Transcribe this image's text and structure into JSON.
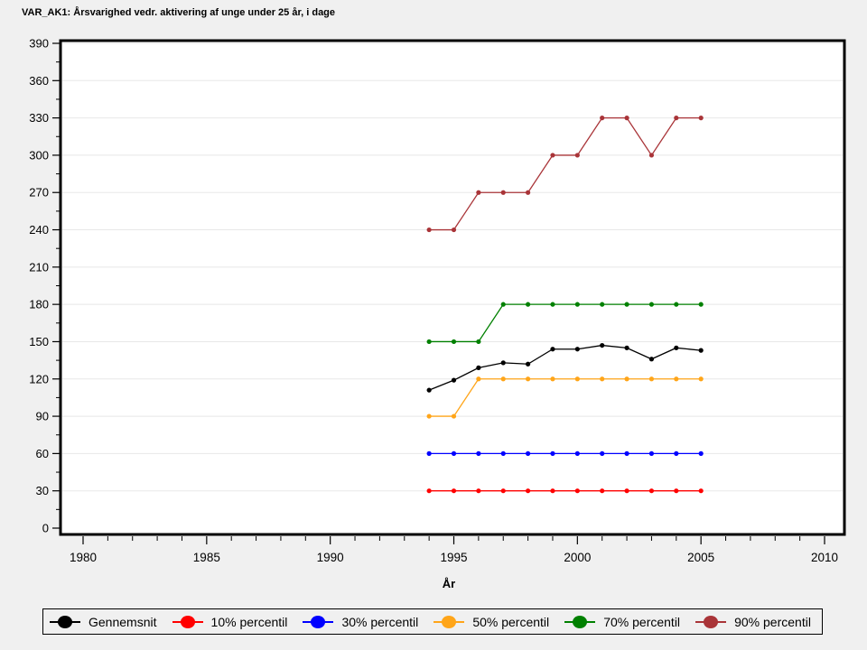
{
  "page": {
    "background": "#F0F0F0",
    "plot_background": "#FFFFFF",
    "frame_color": "#000000"
  },
  "chart_data": {
    "type": "line",
    "title": "VAR_AK1: Årsvarighed vedr. aktivering af unge under 25 år, i dage",
    "xlabel": "År",
    "ylabel": "",
    "ylim": [
      0,
      390
    ],
    "y_tick_step": 30,
    "y_minor_tick_step": 15,
    "x_axis_range": [
      1980,
      2010
    ],
    "x_ticks_major": [
      1980,
      1985,
      1990,
      1995,
      2000,
      2005,
      2010
    ],
    "x_minor_tick_step": 1,
    "grid": "horizontal",
    "grid_color": "#E8E8E8",
    "legend_position": "bottom",
    "x": [
      1994,
      1995,
      1996,
      1997,
      1998,
      1999,
      2000,
      2001,
      2002,
      2003,
      2004,
      2005
    ],
    "series": [
      {
        "name": "Gennemsnit",
        "color": "#000000",
        "values": [
          111,
          119,
          129,
          133,
          132,
          144,
          144,
          147,
          145,
          136,
          145,
          143
        ]
      },
      {
        "name": "10% percentil",
        "color": "#FF0000",
        "values": [
          30,
          30,
          30,
          30,
          30,
          30,
          30,
          30,
          30,
          30,
          30,
          30
        ]
      },
      {
        "name": "30% percentil",
        "color": "#0000FF",
        "values": [
          60,
          60,
          60,
          60,
          60,
          60,
          60,
          60,
          60,
          60,
          60,
          60
        ]
      },
      {
        "name": "50% percentil",
        "color": "#FFA519",
        "values": [
          90,
          90,
          120,
          120,
          120,
          120,
          120,
          120,
          120,
          120,
          120,
          120
        ]
      },
      {
        "name": "70% percentil",
        "color": "#008000",
        "values": [
          150,
          150,
          150,
          180,
          180,
          180,
          180,
          180,
          180,
          180,
          180,
          180
        ]
      },
      {
        "name": "90% percentil",
        "color": "#A93438",
        "values": [
          240,
          240,
          270,
          270,
          270,
          300,
          300,
          330,
          330,
          300,
          330,
          330
        ]
      }
    ]
  }
}
